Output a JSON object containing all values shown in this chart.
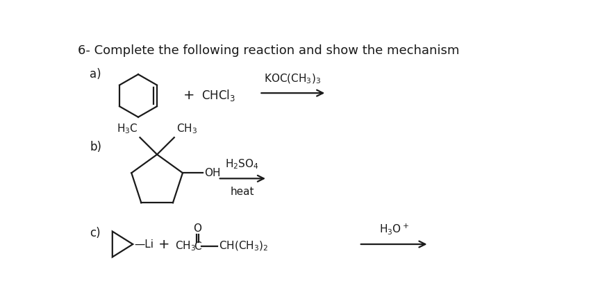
{
  "title": "6- Complete the following reaction and show the mechanism",
  "title_fontsize": 13,
  "background_color": "#ffffff",
  "text_color": "#1a1a1a",
  "label_a": "a)",
  "label_b": "b)",
  "label_c": "c)",
  "rxn_a_reagent1": "CHCl$_3$",
  "rxn_a_reagent2": "KOC(CH$_3$)$_3$",
  "rxn_b_reagent1": "H$_2$SO$_4$",
  "rxn_b_reagent2": "heat",
  "rxn_b_h3c": "H$_3$C",
  "rxn_b_ch3": "CH$_3$",
  "rxn_b_oh": "OH",
  "rxn_c_li": "—Li",
  "rxn_c_ch3": "CH$_3$",
  "rxn_c_c": "C",
  "rxn_c_ch": "CH(CH$_3$)$_2$",
  "rxn_c_o": "O",
  "rxn_c_reagent": "H$_3$O$^+$",
  "plus": "+"
}
